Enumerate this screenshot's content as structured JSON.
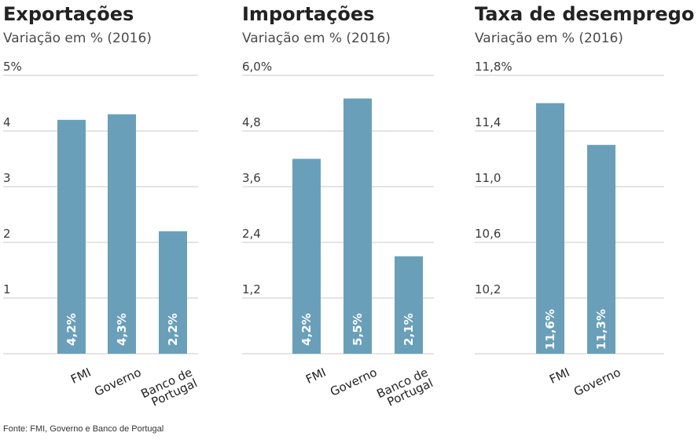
{
  "source": "Fonte: FMI, Governo e Banco de Portugal",
  "colors": {
    "bar": "#6a9fba",
    "grid": "#c8c8c8",
    "text": "#222222",
    "subtitle": "#4a4a4a",
    "bar_label": "#ffffff"
  },
  "chart_data": [
    {
      "type": "bar",
      "title": "Exportações",
      "subtitle": "Variação em % (2016)",
      "categories": [
        "FMI",
        "Governo",
        "Banco de Portugal"
      ],
      "category_lines": [
        [
          "FMI"
        ],
        [
          "Governo"
        ],
        [
          "Banco de",
          "Portugal"
        ]
      ],
      "values": [
        4.2,
        4.3,
        2.2
      ],
      "value_labels": [
        "4,2%",
        "4,3%",
        "2,2%"
      ],
      "ylim": [
        0,
        5
      ],
      "yticks": [
        1,
        2,
        3,
        4,
        5
      ],
      "ytick_labels": [
        "1",
        "2",
        "3",
        "4",
        "5%"
      ],
      "grid": true,
      "xlabel": "",
      "ylabel": ""
    },
    {
      "type": "bar",
      "title": "Importações",
      "subtitle": "Variação em % (2016)",
      "categories": [
        "FMI",
        "Governo",
        "Banco de Portugal"
      ],
      "category_lines": [
        [
          "FMI"
        ],
        [
          "Governo"
        ],
        [
          "Banco de",
          "Portugal"
        ]
      ],
      "values": [
        4.2,
        5.5,
        2.1
      ],
      "value_labels": [
        "4,2%",
        "5,5%",
        "2,1%"
      ],
      "ylim": [
        0,
        6.0
      ],
      "yticks": [
        1.2,
        2.4,
        3.6,
        4.8,
        6.0
      ],
      "ytick_labels": [
        "1,2",
        "2,4",
        "3,6",
        "4,8",
        "6,0%"
      ],
      "grid": true,
      "xlabel": "",
      "ylabel": ""
    },
    {
      "type": "bar",
      "title": "Taxa de desemprego",
      "subtitle": "Variação em % (2016)",
      "categories": [
        "FMI",
        "Governo"
      ],
      "category_lines": [
        [
          "FMI"
        ],
        [
          "Governo"
        ]
      ],
      "values": [
        11.6,
        11.3
      ],
      "value_labels": [
        "11,6%",
        "11,3%"
      ],
      "ylim": [
        9.8,
        11.8
      ],
      "yticks": [
        10.2,
        10.6,
        11.0,
        11.4,
        11.8
      ],
      "ytick_labels": [
        "10,2",
        "10,6",
        "11,0",
        "11,4",
        "11,8%"
      ],
      "grid": true,
      "xlabel": "",
      "ylabel": ""
    }
  ]
}
